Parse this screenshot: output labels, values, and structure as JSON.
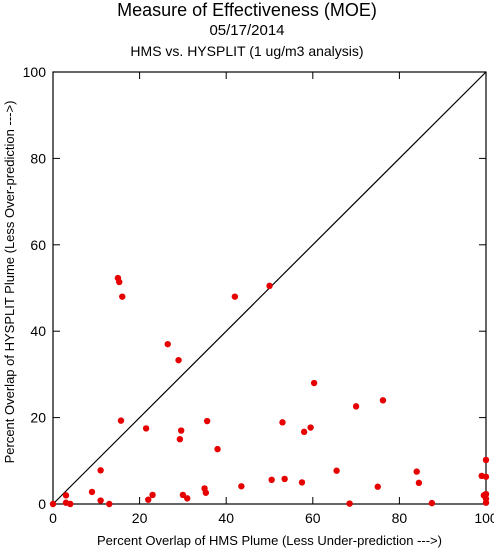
{
  "chart_data": {
    "type": "scatter",
    "title": "Measure of Effectiveness (MOE)",
    "date": "05/17/2014",
    "subtitle": "HMS vs. HYSPLIT  (1 ug/m3 analysis)",
    "xlabel": "Percent Overlap of HMS Plume (Less Under-prediction --->)",
    "ylabel": "Percent Overlap of HYSPLIT Plume (Less Over-prediction --->)",
    "xlim": [
      0,
      100
    ],
    "ylim": [
      0,
      100
    ],
    "xticks": [
      "0",
      "20",
      "40",
      "60",
      "80",
      "100"
    ],
    "yticks": [
      "0",
      "20",
      "40",
      "60",
      "80",
      "100"
    ],
    "grid": false,
    "reference_line": "diagonal y = x",
    "point_color": "#e60000",
    "points": [
      [
        0,
        0
      ],
      [
        3,
        2
      ],
      [
        3,
        0.3
      ],
      [
        4,
        0
      ],
      [
        9,
        2.8
      ],
      [
        11,
        7.8
      ],
      [
        11,
        0.8
      ],
      [
        13,
        0
      ],
      [
        15,
        52.3
      ],
      [
        15.3,
        51.4
      ],
      [
        15.7,
        19.3
      ],
      [
        16,
        48
      ],
      [
        21.5,
        17.5
      ],
      [
        22,
        1
      ],
      [
        23,
        2.1
      ],
      [
        26.5,
        37
      ],
      [
        29,
        33.3
      ],
      [
        29.3,
        15
      ],
      [
        29.6,
        17
      ],
      [
        30,
        2.1
      ],
      [
        31,
        1.3
      ],
      [
        35,
        3.6
      ],
      [
        35.3,
        2.6
      ],
      [
        35.6,
        19.2
      ],
      [
        38,
        12.7
      ],
      [
        42,
        48
      ],
      [
        43.5,
        4.1
      ],
      [
        50,
        50.5
      ],
      [
        50.5,
        5.6
      ],
      [
        53,
        18.9
      ],
      [
        53.5,
        5.8
      ],
      [
        57.5,
        5
      ],
      [
        58,
        16.7
      ],
      [
        59.5,
        17.7
      ],
      [
        60.3,
        28
      ],
      [
        65.5,
        7.7
      ],
      [
        68.5,
        0.1
      ],
      [
        70,
        22.6
      ],
      [
        75,
        4
      ],
      [
        76.2,
        24
      ],
      [
        84,
        7.5
      ],
      [
        84.5,
        4.9
      ],
      [
        87.5,
        0.2
      ],
      [
        99,
        6.5
      ],
      [
        99.5,
        2
      ],
      [
        100,
        10.2
      ],
      [
        100,
        6.3
      ],
      [
        100,
        2.3
      ],
      [
        100,
        1.2
      ],
      [
        100,
        0.3
      ]
    ]
  }
}
